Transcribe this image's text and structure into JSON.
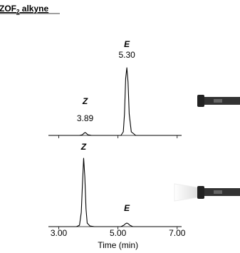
{
  "chart_data": [
    {
      "type": "line",
      "title": "ZOF",
      "title_subscript": "2",
      "title_suffix": " alkyne",
      "xlim": [
        2.65,
        7.15
      ],
      "ylim": [
        0,
        110
      ],
      "xticks": [
        3,
        5,
        7
      ],
      "series": [
        {
          "color": "#000000",
          "x": [
            2.65,
            3.7,
            3.8,
            3.85,
            3.89,
            3.93,
            3.98,
            4.1,
            5.1,
            5.18,
            5.22,
            5.26,
            5.3,
            5.34,
            5.38,
            5.45,
            5.6,
            7.15
          ],
          "values": [
            0,
            0,
            1,
            3,
            4,
            3,
            1,
            0,
            0,
            5,
            30,
            80,
            95,
            75,
            30,
            5,
            0,
            0
          ]
        }
      ],
      "annotations": [
        {
          "text": "Z",
          "x": 3.89
        },
        {
          "text": "3.89",
          "x": 3.89
        },
        {
          "text": "E",
          "x": 5.3
        },
        {
          "text": "5.30",
          "x": 5.3
        }
      ]
    },
    {
      "type": "line",
      "xlabel": "Time (min)",
      "xlim": [
        2.65,
        7.15
      ],
      "ylim": [
        0,
        110
      ],
      "xticks": [
        {
          "value": 3,
          "label": "3.00"
        },
        {
          "value": 5,
          "label": "5.00"
        },
        {
          "value": 7,
          "label": "7.00"
        }
      ],
      "series": [
        {
          "color": "#000000",
          "x": [
            2.65,
            3.6,
            3.7,
            3.76,
            3.8,
            3.84,
            3.88,
            3.92,
            3.96,
            4.05,
            4.2,
            5.1,
            5.2,
            5.25,
            5.3,
            5.35,
            5.4,
            5.5,
            7.15
          ],
          "values": [
            0,
            0,
            2,
            20,
            60,
            96,
            70,
            25,
            5,
            1,
            0,
            0,
            2,
            4,
            5,
            4,
            2,
            0,
            0
          ]
        }
      ],
      "annotations": [
        {
          "text": "Z",
          "x": 3.84
        },
        {
          "text": "E",
          "x": 5.3
        }
      ]
    }
  ]
}
